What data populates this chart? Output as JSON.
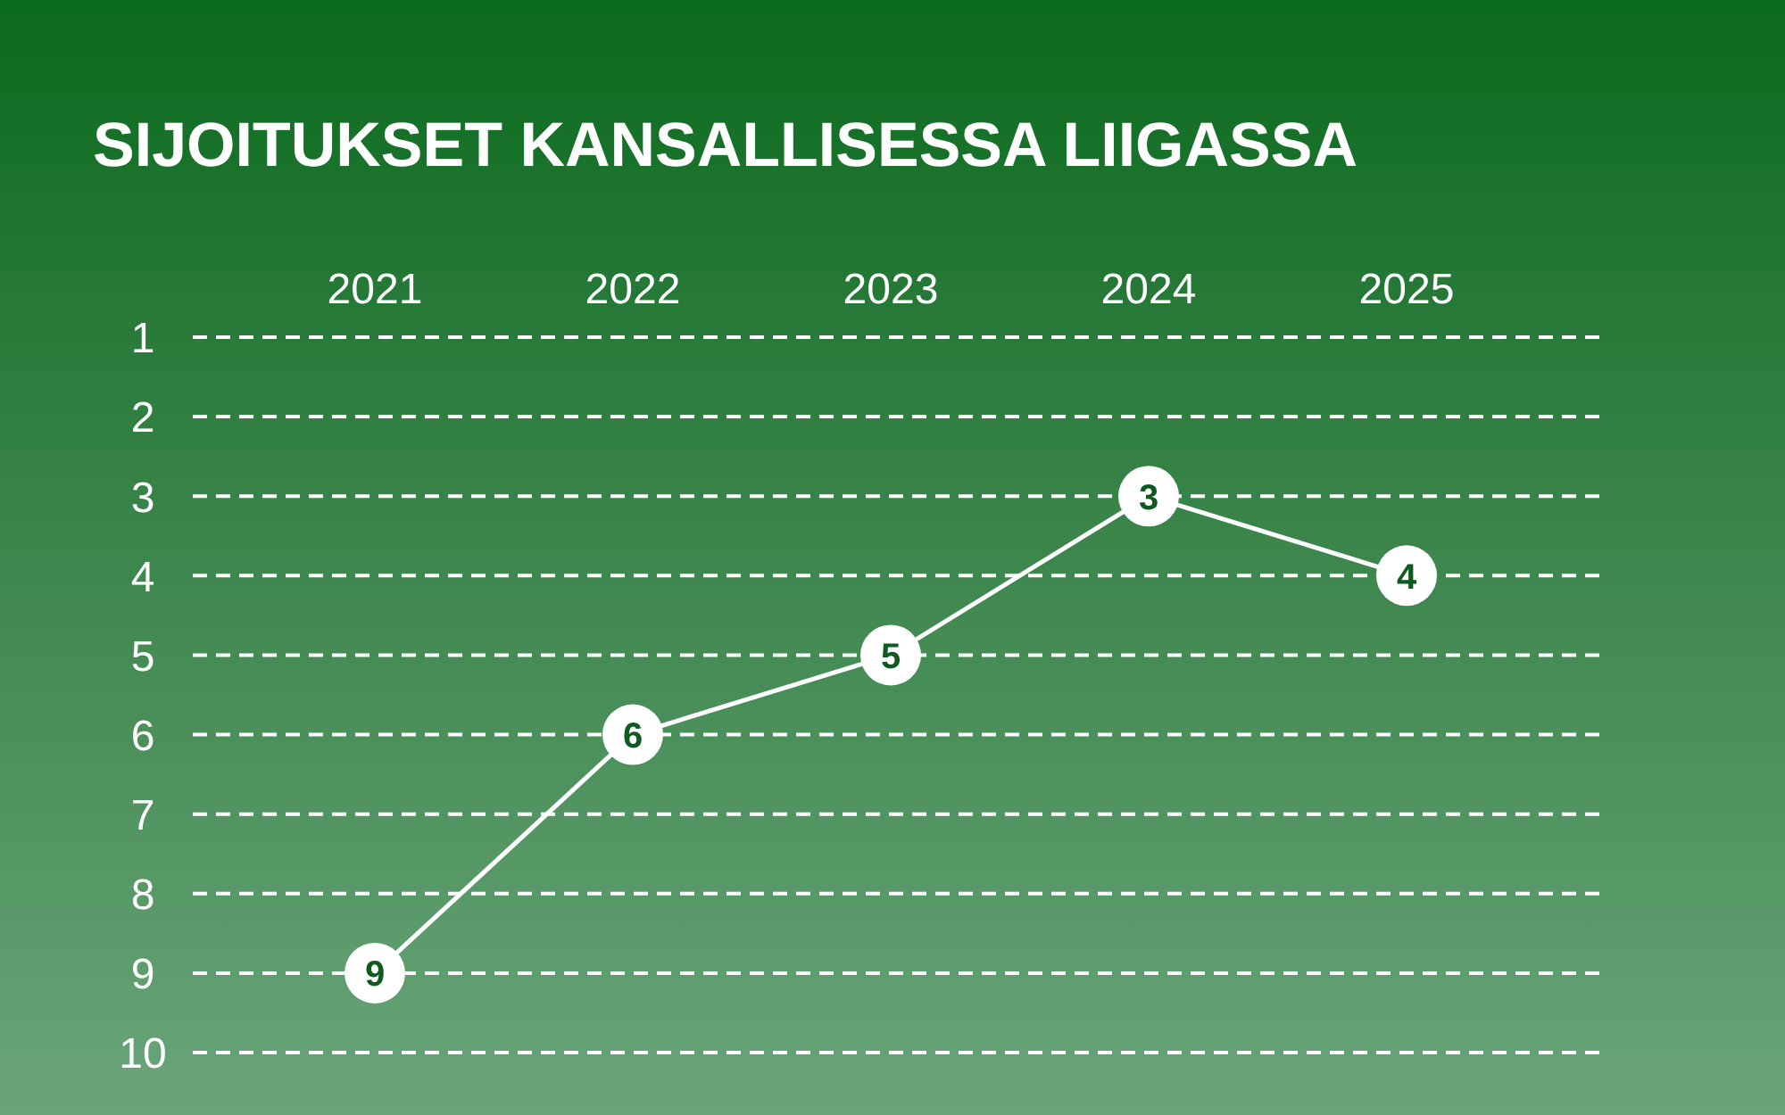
{
  "chart_data": {
    "type": "line",
    "title": "SIJOITUKSET KANSALLISESSA LIIGASSA",
    "categories": [
      "2021",
      "2022",
      "2023",
      "2024",
      "2025"
    ],
    "series": [
      {
        "color": "#ffffff",
        "values": [
          9,
          6,
          5,
          3,
          4
        ]
      }
    ],
    "ylim": [
      10,
      1
    ],
    "yticks": [
      1,
      2,
      3,
      4,
      5,
      6,
      7,
      8,
      9,
      10
    ],
    "grid": "y",
    "marker": "circle",
    "line_style": "solid",
    "data_labels": true
  }
}
